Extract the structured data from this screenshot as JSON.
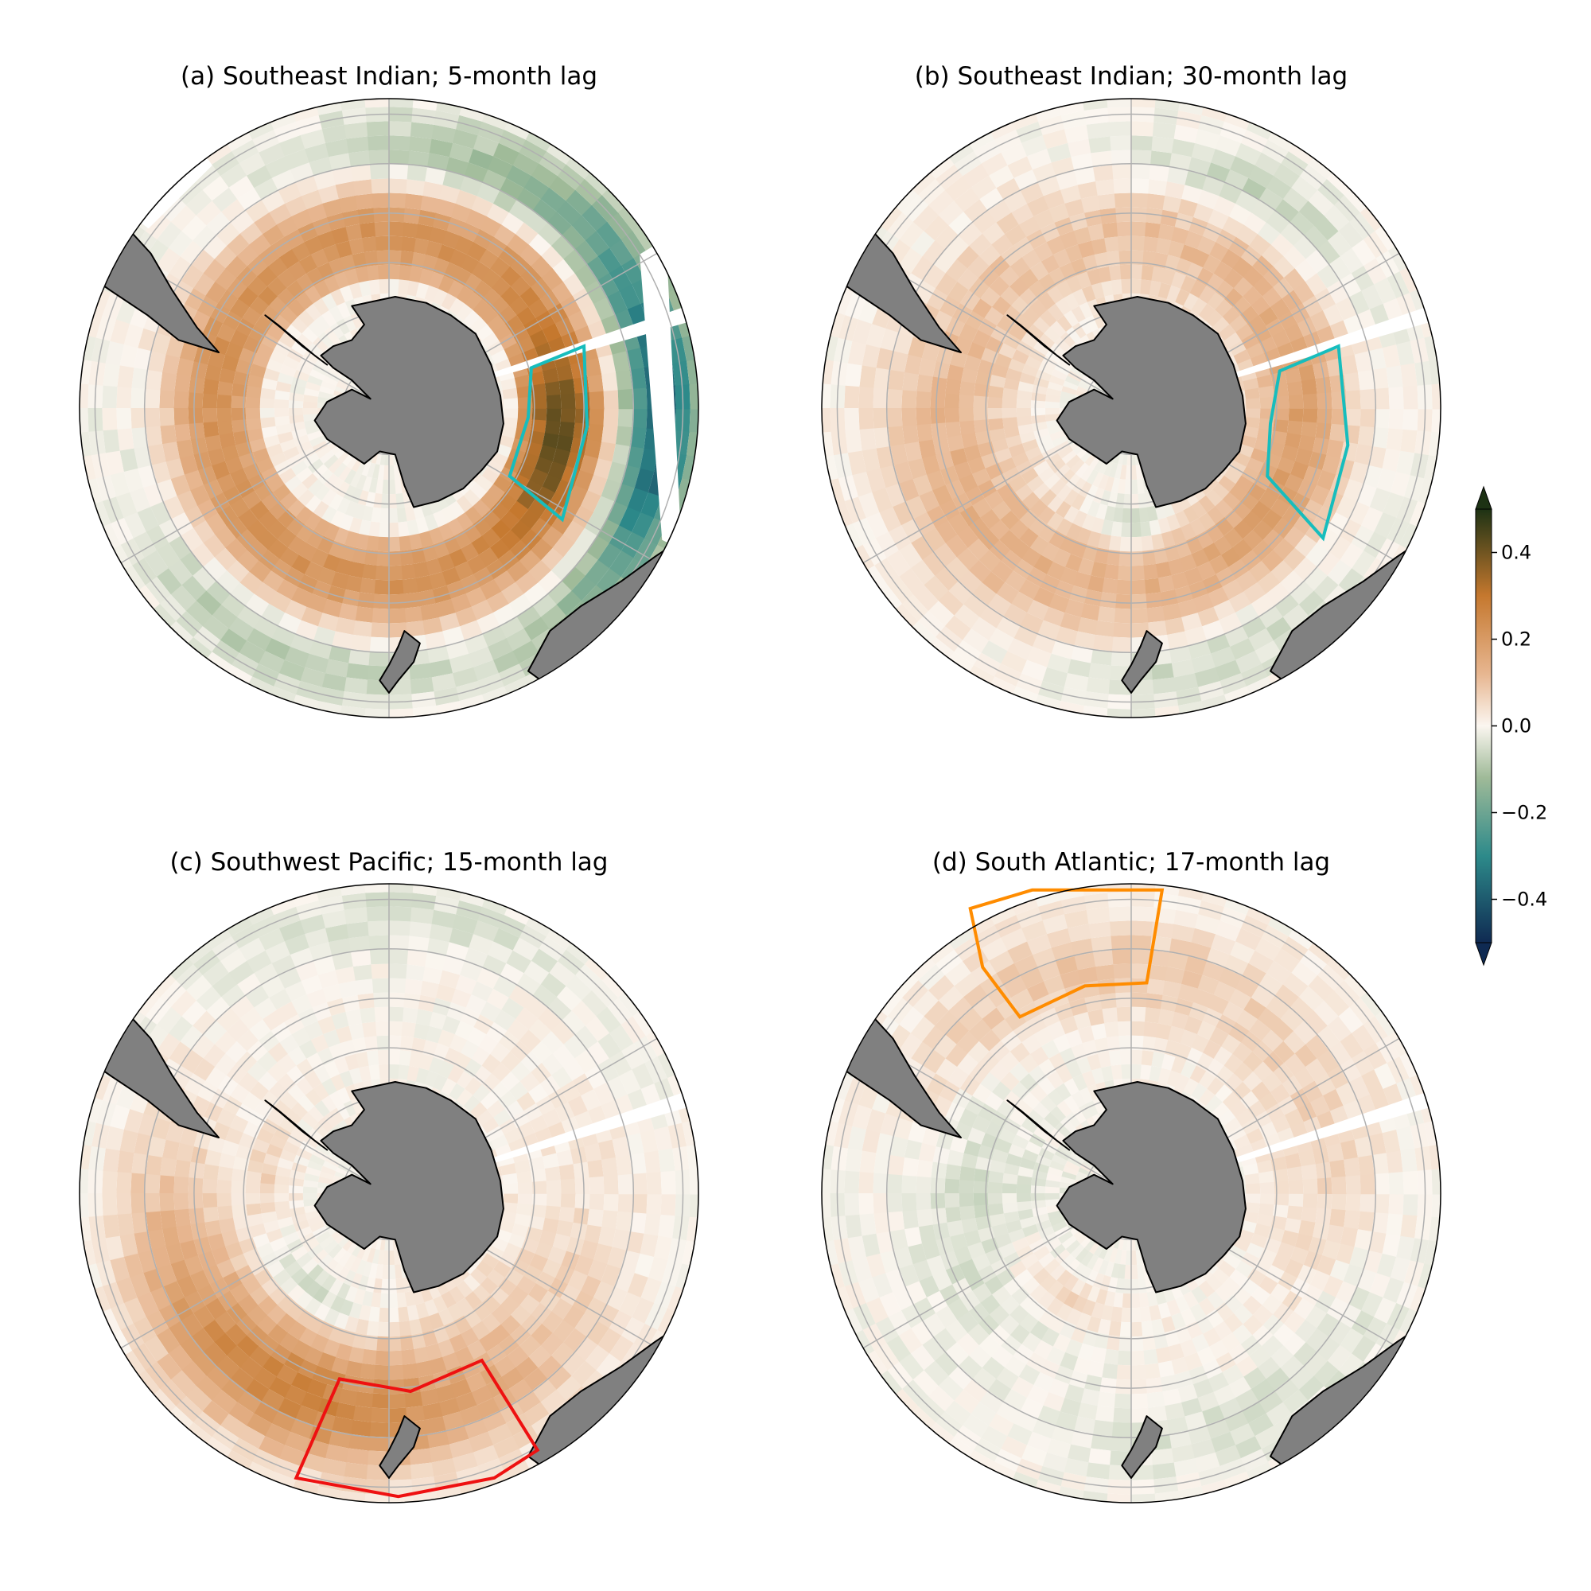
{
  "figure": {
    "panels": [
      {
        "id": "a",
        "title": "(a) Southeast Indian; 5-month lag",
        "pattern": "se_indian_5",
        "highlight": {
          "color": "#17bdbd"
        },
        "land_mask": "pie-slice-ne"
      },
      {
        "id": "b",
        "title": "(b) Southeast Indian; 30-month lag",
        "pattern": "se_indian_30",
        "highlight": {
          "color": "#17bdbd"
        }
      },
      {
        "id": "c",
        "title": "(c) Southwest Pacific; 15-month lag",
        "pattern": "sw_pacific_15",
        "highlight": {
          "color": "#ee1111"
        }
      },
      {
        "id": "d",
        "title": "(d) South Atlantic; 17-month lag",
        "pattern": "s_atlantic_17",
        "highlight": {
          "color": "#ff8c00"
        }
      }
    ],
    "colorbar": {
      "min": -0.5,
      "max": 0.5,
      "ticks": [
        {
          "value": 0.4,
          "label": "0.4"
        },
        {
          "value": 0.2,
          "label": "0.2"
        },
        {
          "value": 0.0,
          "label": "0.0"
        },
        {
          "value": -0.2,
          "label": "−0.2"
        },
        {
          "value": -0.4,
          "label": "−0.4"
        }
      ],
      "extend": "both",
      "colors": {
        "neg_max": "#0f2a52",
        "neg_mid": "#2d8a8a",
        "neg_low": "#9fba98",
        "zero": "#fbf6f0",
        "pos_low": "#e7b690",
        "pos_mid": "#c5782e",
        "pos_max": "#1d3214"
      }
    },
    "map_colors": {
      "land": "#808080",
      "coast": "#000000",
      "grid": "#b0b0b0",
      "ocean_blank": "#ffffff"
    }
  }
}
